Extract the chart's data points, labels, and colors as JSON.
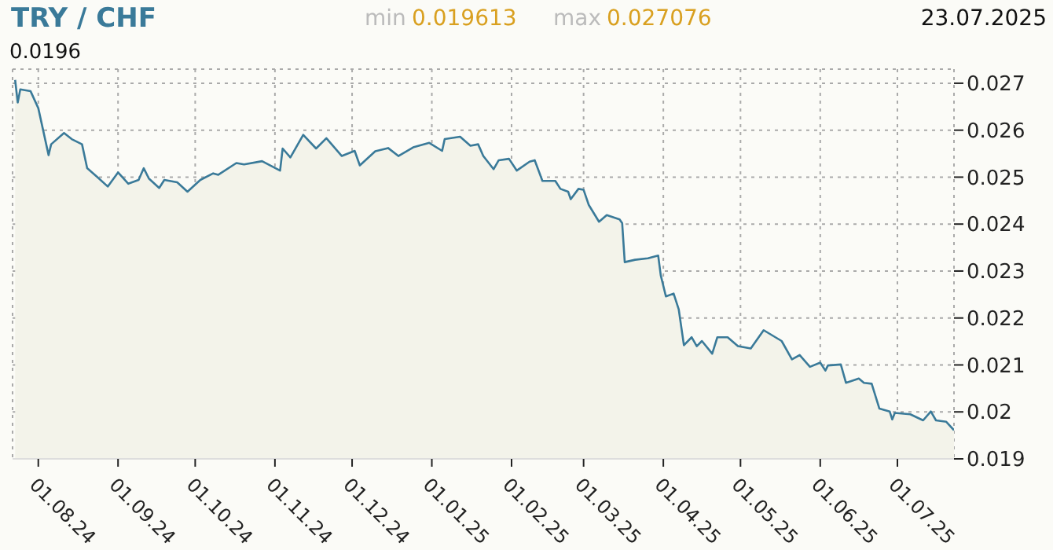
{
  "chart_data": {
    "type": "area",
    "title": "TRY / CHF",
    "annotations": [
      "0.0196",
      "min",
      "0.019613",
      "max",
      "0.027076",
      "23.07.2025"
    ],
    "color": "#3a7a99",
    "x": [
      "2024-07-23",
      "2024-07-24",
      "2024-07-25",
      "2024-07-29",
      "2024-08-01",
      "2024-08-05",
      "2024-08-06",
      "2024-08-11",
      "2024-08-14",
      "2024-08-18",
      "2024-08-20",
      "2024-08-24",
      "2024-08-28",
      "2024-09-01",
      "2024-09-05",
      "2024-09-09",
      "2024-09-11",
      "2024-09-13",
      "2024-09-17",
      "2024-09-19",
      "2024-09-24",
      "2024-09-28",
      "2024-10-03",
      "2024-10-08",
      "2024-10-10",
      "2024-10-17",
      "2024-10-20",
      "2024-10-27",
      "2024-11-03",
      "2024-11-04",
      "2024-11-07",
      "2024-11-12",
      "2024-11-17",
      "2024-11-21",
      "2024-11-27",
      "2024-12-02",
      "2024-12-04",
      "2024-12-10",
      "2024-12-15",
      "2024-12-19",
      "2024-12-25",
      "2024-12-31",
      "2025-01-05",
      "2025-01-06",
      "2025-01-12",
      "2025-01-16",
      "2025-01-19",
      "2025-01-21",
      "2025-01-25",
      "2025-01-27",
      "2025-01-31",
      "2025-02-03",
      "2025-02-08",
      "2025-02-10",
      "2025-02-13",
      "2025-02-18",
      "2025-02-20",
      "2025-02-23",
      "2025-02-24",
      "2025-02-27",
      "2025-03-01",
      "2025-03-03",
      "2025-03-07",
      "2025-03-10",
      "2025-03-15",
      "2025-03-16",
      "2025-03-17",
      "2025-03-21",
      "2025-03-26",
      "2025-03-30",
      "2025-03-31",
      "2025-04-02",
      "2025-04-05",
      "2025-04-07",
      "2025-04-09",
      "2025-04-12",
      "2025-04-14",
      "2025-04-16",
      "2025-04-20",
      "2025-04-22",
      "2025-04-26",
      "2025-04-30",
      "2025-05-05",
      "2025-05-10",
      "2025-05-17",
      "2025-05-21",
      "2025-05-24",
      "2025-05-28",
      "2025-06-01",
      "2025-06-03",
      "2025-06-04",
      "2025-06-09",
      "2025-06-11",
      "2025-06-16",
      "2025-06-18",
      "2025-06-21",
      "2025-06-24",
      "2025-06-28",
      "2025-06-29",
      "2025-06-30",
      "2025-07-06",
      "2025-07-11",
      "2025-07-14",
      "2025-07-16",
      "2025-07-20",
      "2025-07-23"
    ],
    "values": [
      0.02707,
      0.02659,
      0.02687,
      0.02683,
      0.02647,
      0.02547,
      0.0257,
      0.02594,
      0.02581,
      0.0257,
      0.02519,
      0.025,
      0.0248,
      0.0251,
      0.02486,
      0.02494,
      0.02519,
      0.02497,
      0.02477,
      0.02494,
      0.02489,
      0.02469,
      0.02494,
      0.02508,
      0.02505,
      0.0253,
      0.02527,
      0.02534,
      0.02514,
      0.02561,
      0.02542,
      0.0259,
      0.02561,
      0.02583,
      0.02545,
      0.02556,
      0.02525,
      0.02555,
      0.02562,
      0.02545,
      0.02564,
      0.02573,
      0.02556,
      0.02581,
      0.02586,
      0.02567,
      0.0257,
      0.02545,
      0.02517,
      0.02536,
      0.02539,
      0.02514,
      0.02533,
      0.02536,
      0.02492,
      0.02492,
      0.02475,
      0.02469,
      0.02453,
      0.02475,
      0.02473,
      0.02441,
      0.02405,
      0.02419,
      0.0241,
      0.02402,
      0.02319,
      0.02324,
      0.02327,
      0.02333,
      0.02291,
      0.02246,
      0.02252,
      0.02218,
      0.02142,
      0.02159,
      0.0214,
      0.02151,
      0.02124,
      0.02159,
      0.02159,
      0.0214,
      0.02135,
      0.02174,
      0.02151,
      0.02112,
      0.02121,
      0.02096,
      0.02105,
      0.02088,
      0.02099,
      0.02101,
      0.02062,
      0.02071,
      0.02062,
      0.0206,
      0.02007,
      0.02001,
      0.01984,
      0.01998,
      0.01995,
      0.01982,
      0.02001,
      0.01982,
      0.01979,
      0.01961
    ],
    "xlim": [
      "2024-07-22",
      "2025-07-23"
    ],
    "xticks": [
      {
        "value": "2024-08-01",
        "label": "01.08.24"
      },
      {
        "value": "2024-09-01",
        "label": "01.09.24"
      },
      {
        "value": "2024-10-01",
        "label": "01.10.24"
      },
      {
        "value": "2024-11-01",
        "label": "01.11.24"
      },
      {
        "value": "2024-12-01",
        "label": "01.12.24"
      },
      {
        "value": "2025-01-01",
        "label": "01.01.25"
      },
      {
        "value": "2025-02-01",
        "label": "01.02.25"
      },
      {
        "value": "2025-03-01",
        "label": "01.03.25"
      },
      {
        "value": "2025-04-01",
        "label": "01.04.25"
      },
      {
        "value": "2025-05-01",
        "label": "01.05.25"
      },
      {
        "value": "2025-06-01",
        "label": "01.06.25"
      },
      {
        "value": "2025-07-01",
        "label": "01.07.25"
      }
    ],
    "ylim": [
      0.019,
      0.0273
    ],
    "yticks": [
      0.019,
      0.02,
      0.021,
      0.022,
      0.023,
      0.024,
      0.025,
      0.026,
      0.027
    ],
    "grid": true
  }
}
